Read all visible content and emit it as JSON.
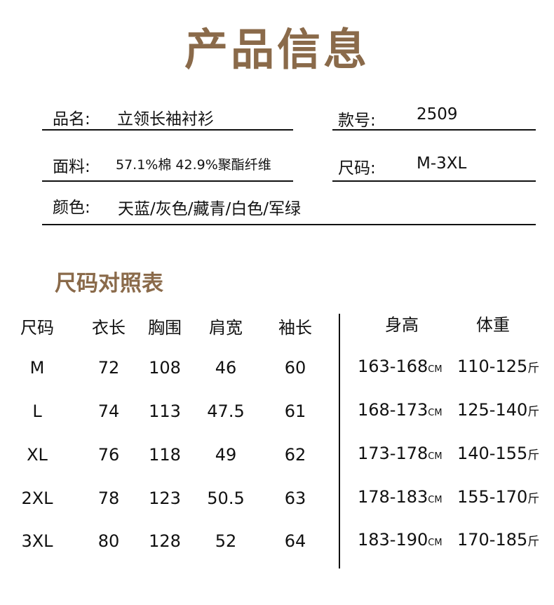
{
  "title": "产品信息",
  "accent_color": "#8a6a4a",
  "info": {
    "name_label": "品名:",
    "name_value": "立领长袖衬衫",
    "style_label": "款号:",
    "style_value": "2509",
    "fabric_label": "面料:",
    "fabric_value": "57.1%棉 42.9%聚酯纤维",
    "size_label": "尺码:",
    "size_value": "M-3XL",
    "color_label": "颜色:",
    "color_value": "天蓝/灰色/藏青/白色/军绿"
  },
  "size_chart": {
    "title": "尺码对照表",
    "headers": [
      "尺码",
      "衣长",
      "胸围",
      "肩宽",
      "袖长",
      "身高",
      "体重"
    ],
    "height_unit": "CM",
    "weight_unit": "斤",
    "rows": [
      [
        "M",
        "72",
        "108",
        "46",
        "60",
        "163-168",
        "110-125"
      ],
      [
        "L",
        "74",
        "113",
        "47.5",
        "61",
        "168-173",
        "125-140"
      ],
      [
        "XL",
        "76",
        "118",
        "49",
        "62",
        "173-178",
        "140-155"
      ],
      [
        "2XL",
        "78",
        "123",
        "50.5",
        "63",
        "178-183",
        "155-170"
      ],
      [
        "3XL",
        "80",
        "128",
        "52",
        "64",
        "183-190",
        "170-185"
      ]
    ]
  }
}
